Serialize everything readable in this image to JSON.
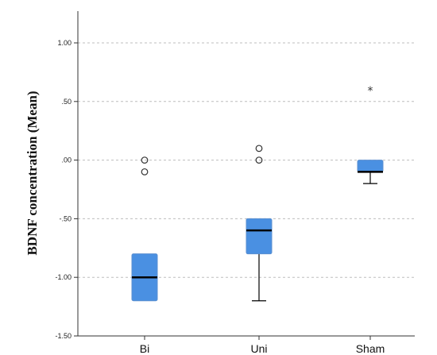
{
  "chart_data": {
    "type": "boxplot",
    "title": "",
    "xlabel": "",
    "ylabel": "BDNF concentration (Mean)",
    "ylim": [
      -1.5,
      1.25
    ],
    "yticks": [
      1.0,
      0.5,
      0.0,
      -0.5,
      -1.0,
      -1.5
    ],
    "ytick_labels": [
      "1.00",
      ".50",
      ".00",
      "-.50",
      "-1.00",
      "-1.50"
    ],
    "grid": "horizontal dashed",
    "categories": [
      "Bi",
      "Uni",
      "Sham"
    ],
    "box_color": "#4a90e2",
    "boxes": [
      {
        "category": "Bi",
        "min": -1.2,
        "q1": -1.2,
        "median": -1.0,
        "q3": -0.8,
        "max": -0.8,
        "outliers": [
          0.0,
          -0.1
        ],
        "extremes": []
      },
      {
        "category": "Uni",
        "min": -1.2,
        "q1": -0.8,
        "median": -0.6,
        "q3": -0.5,
        "max": -0.5,
        "outliers": [
          0.1,
          0.0
        ],
        "extremes": []
      },
      {
        "category": "Sham",
        "min": -0.2,
        "q1": -0.1,
        "median": -0.1,
        "q3": 0.0,
        "max": 0.0,
        "outliers": [],
        "extremes": [
          0.6
        ]
      }
    ],
    "extreme_marker": "*"
  }
}
